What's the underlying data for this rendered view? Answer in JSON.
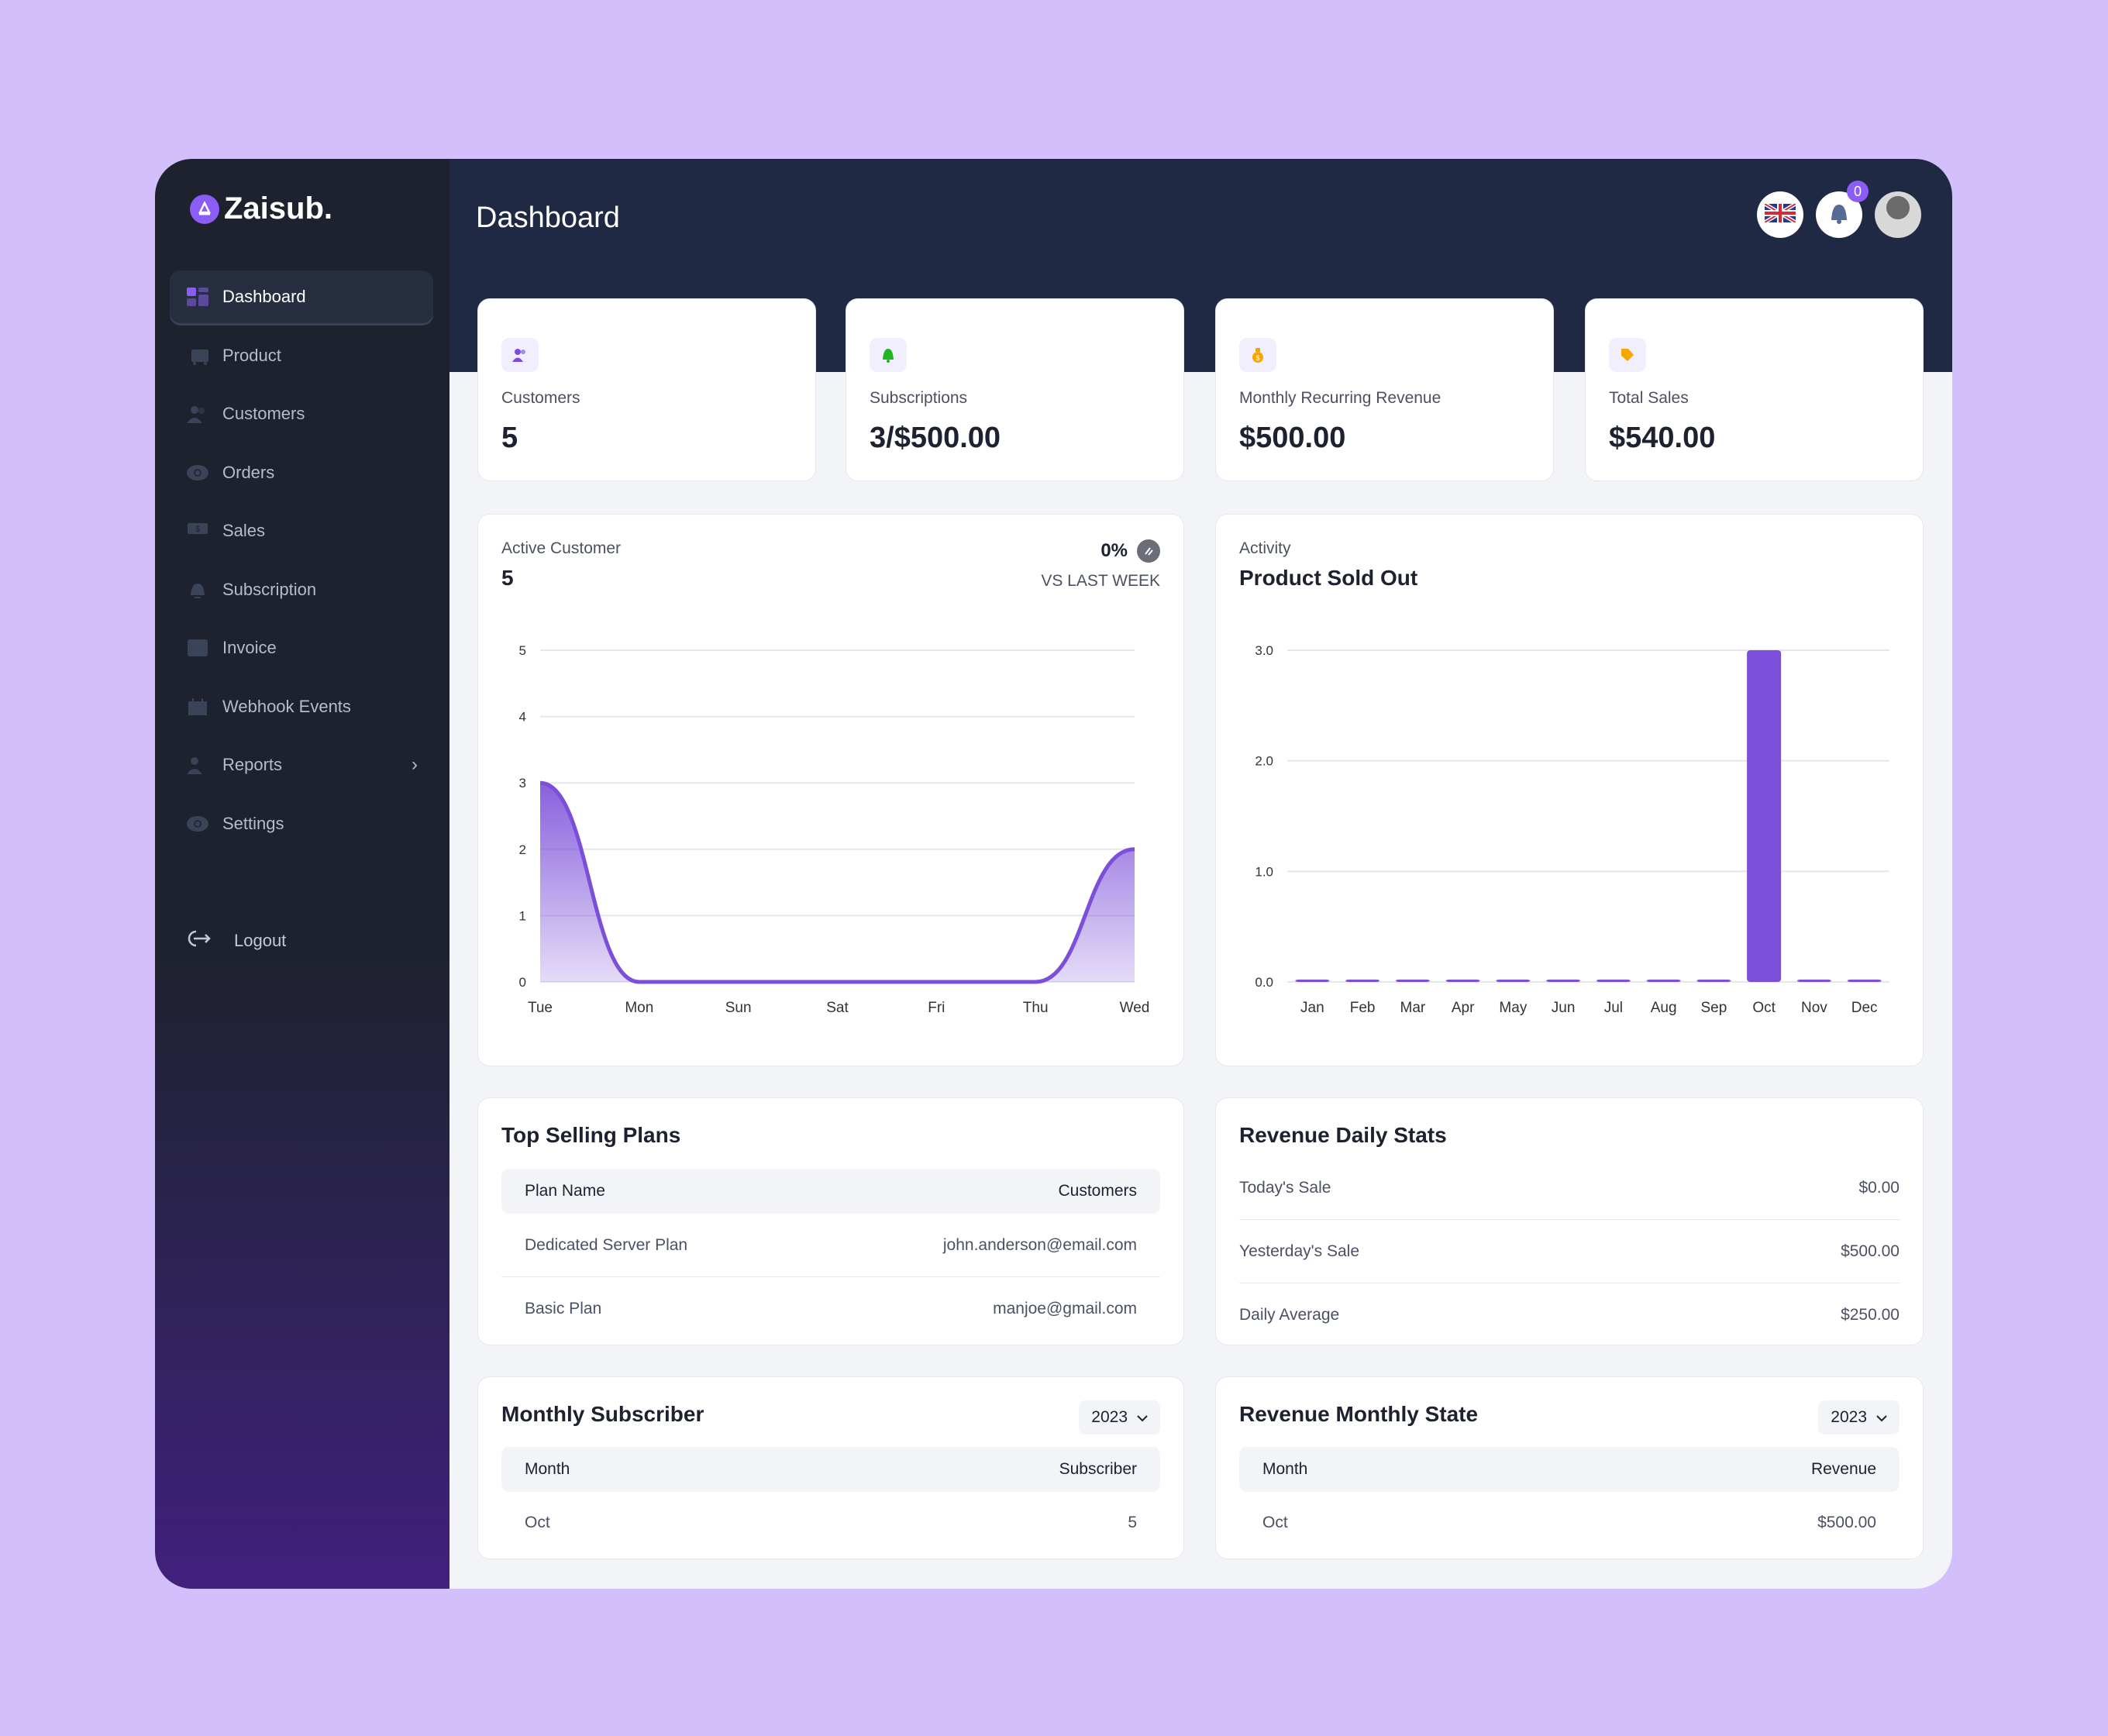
{
  "brand": {
    "name": "Zaisub."
  },
  "sidebar": {
    "items": [
      {
        "label": "Dashboard",
        "icon": "dashboard-icon",
        "active": true
      },
      {
        "label": "Product",
        "icon": "cart-icon"
      },
      {
        "label": "Customers",
        "icon": "users-icon"
      },
      {
        "label": "Orders",
        "icon": "orders-icon"
      },
      {
        "label": "Sales",
        "icon": "dollar-icon"
      },
      {
        "label": "Subscription",
        "icon": "bell-icon"
      },
      {
        "label": "Invoice",
        "icon": "invoice-icon"
      },
      {
        "label": "Webhook Events",
        "icon": "calendar-icon"
      },
      {
        "label": "Reports",
        "icon": "users-icon",
        "has_submenu": true
      },
      {
        "label": "Settings",
        "icon": "gear-icon"
      }
    ],
    "logout": "Logout"
  },
  "header": {
    "title": "Dashboard",
    "notification_count": "0",
    "language": "en-GB"
  },
  "stats": [
    {
      "label": "Customers",
      "value": "5",
      "icon": "users-icon",
      "color": "#7c4ddb"
    },
    {
      "label": "Subscriptions",
      "value": "3/$500.00",
      "icon": "bell-icon",
      "color": "#22b422"
    },
    {
      "label": "Monthly Recurring Revenue",
      "value": "$500.00",
      "icon": "money-bag-icon",
      "color": "#f5a700"
    },
    {
      "label": "Total Sales",
      "value": "$540.00",
      "icon": "tag-icon",
      "color": "#f5a700"
    }
  ],
  "active_customer": {
    "title": "Active Customer",
    "value": "5",
    "change": "0%",
    "compare": "VS LAST WEEK"
  },
  "activity": {
    "title": "Activity",
    "subtitle": "Product Sold Out"
  },
  "chart_data": [
    {
      "type": "area",
      "categories": [
        "Tue",
        "Mon",
        "Sun",
        "Sat",
        "Fri",
        "Thu",
        "Wed"
      ],
      "values": [
        3,
        0,
        0,
        0,
        0,
        0,
        2
      ],
      "ylim": [
        0,
        5
      ],
      "yticks": [
        "0",
        "1",
        "2",
        "3",
        "4",
        "5"
      ],
      "grid": true,
      "color": "#7b4fd9"
    },
    {
      "type": "bar",
      "categories": [
        "Jan",
        "Feb",
        "Mar",
        "Apr",
        "May",
        "Jun",
        "Jul",
        "Aug",
        "Sep",
        "Oct",
        "Nov",
        "Dec"
      ],
      "values": [
        0,
        0,
        0,
        0,
        0,
        0,
        0,
        0,
        0,
        3,
        0,
        0
      ],
      "ylim": [
        0,
        3
      ],
      "yticks": [
        "0.0",
        "1.0",
        "2.0",
        "3.0"
      ],
      "grid": true,
      "color": "#7b4fd9"
    }
  ],
  "top_selling": {
    "title": "Top Selling Plans",
    "columns": [
      "Plan Name",
      "Customers"
    ],
    "rows": [
      [
        "Dedicated Server Plan",
        "john.anderson@email.com"
      ],
      [
        "Basic Plan",
        "manjoe@gmail.com"
      ]
    ]
  },
  "revenue_daily": {
    "title": "Revenue Daily Stats",
    "rows": [
      [
        "Today's Sale",
        "$0.00"
      ],
      [
        "Yesterday's Sale",
        "$500.00"
      ],
      [
        "Daily Average",
        "$250.00"
      ]
    ]
  },
  "monthly_subscriber": {
    "title": "Monthly Subscriber",
    "year": "2023",
    "columns": [
      "Month",
      "Subscriber"
    ],
    "rows": [
      [
        "Oct",
        "5"
      ]
    ]
  },
  "revenue_monthly": {
    "title": "Revenue Monthly State",
    "year": "2023",
    "columns": [
      "Month",
      "Revenue"
    ],
    "rows": [
      [
        "Oct",
        "$500.00"
      ]
    ]
  }
}
